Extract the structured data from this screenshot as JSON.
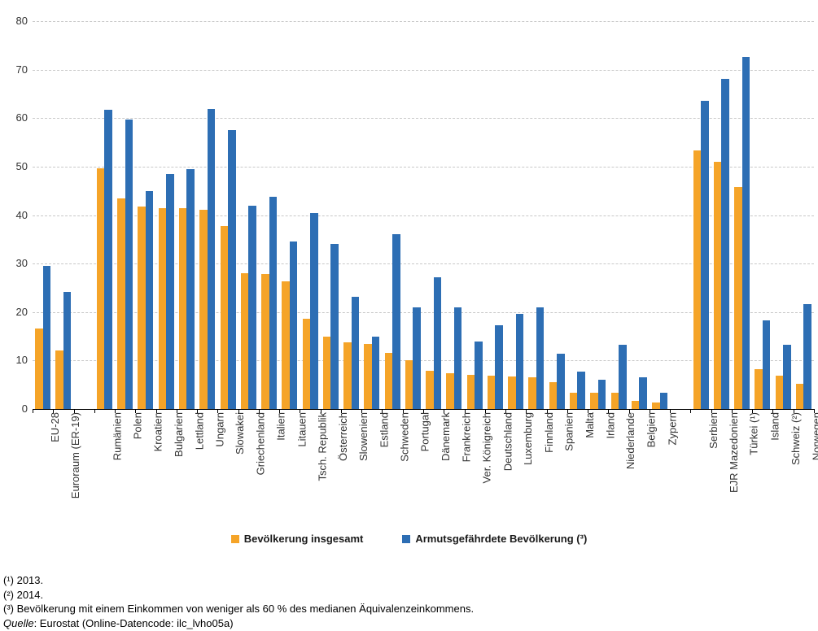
{
  "chart_data": {
    "type": "bar",
    "title": "",
    "grid": "horizontal-dashed",
    "legend_position": "bottom-center",
    "ylim": [
      0,
      80
    ],
    "ytick_step": 10,
    "ytick_labels": [
      "0",
      "10",
      "20",
      "30",
      "40",
      "50",
      "60",
      "70",
      "80"
    ],
    "categories": [
      "EU-28",
      "Euroraum (ER-19)",
      "Rumänien",
      "Polen",
      "Kroatien",
      "Bulgarien",
      "Lettland",
      "Ungarn",
      "Slowakei",
      "Griechenland",
      "Italien",
      "Litauen",
      "Tsch. Republik",
      "Österreich",
      "Slowenien",
      "Estland",
      "Schweden",
      "Portugal",
      "Dänemark",
      "Frankreich",
      "Ver. Königreich",
      "Deutschland",
      "Luxemburg",
      "Finnland",
      "Spanien",
      "Malta",
      "Irland",
      "Niederlande",
      "Belgien",
      "Zypern",
      "Serbien",
      "EJR Mazedonien",
      "Türkei (¹)",
      "Island",
      "Schweiz (²)",
      "Norwegen"
    ],
    "gap_after_indices": [
      1,
      29
    ],
    "series": [
      {
        "name": "Bevölkerung insgesamt",
        "color": "#F5A428",
        "values": [
          16.6,
          12.1,
          49.7,
          43.4,
          41.7,
          41.5,
          41.5,
          41.1,
          37.8,
          28.0,
          27.8,
          26.3,
          18.7,
          15.0,
          13.7,
          13.4,
          11.6,
          10.1,
          7.9,
          7.3,
          7.1,
          6.9,
          6.7,
          6.6,
          5.5,
          3.4,
          3.3,
          3.3,
          1.6,
          1.4,
          53.4,
          51.0,
          45.8,
          8.2,
          6.8,
          5.2
        ]
      },
      {
        "name": "Armutsgefährdete Bevölkerung (³)",
        "color": "#2D6EB4",
        "values": [
          29.5,
          24.1,
          61.8,
          59.7,
          45.0,
          48.5,
          49.4,
          61.9,
          57.5,
          42.0,
          43.8,
          34.6,
          40.4,
          34.0,
          23.1,
          15.0,
          36.0,
          21.0,
          27.2,
          20.9,
          13.9,
          17.2,
          19.7,
          21.0,
          11.4,
          7.7,
          6.0,
          13.3,
          6.5,
          3.4,
          63.6,
          68.1,
          72.7,
          18.3,
          13.3,
          21.6
        ]
      }
    ]
  },
  "footnotes": {
    "line1": "(¹) 2013.",
    "line2": "(²) 2014.",
    "line3": "(³) Bevölkerung mit einem Einkommen von weniger als 60 % des medianen Äquivalenzeinkommens.",
    "source_label": "Quelle",
    "source_rest": ": Eurostat (Online-Datencode: ilc_lvho05a)"
  }
}
